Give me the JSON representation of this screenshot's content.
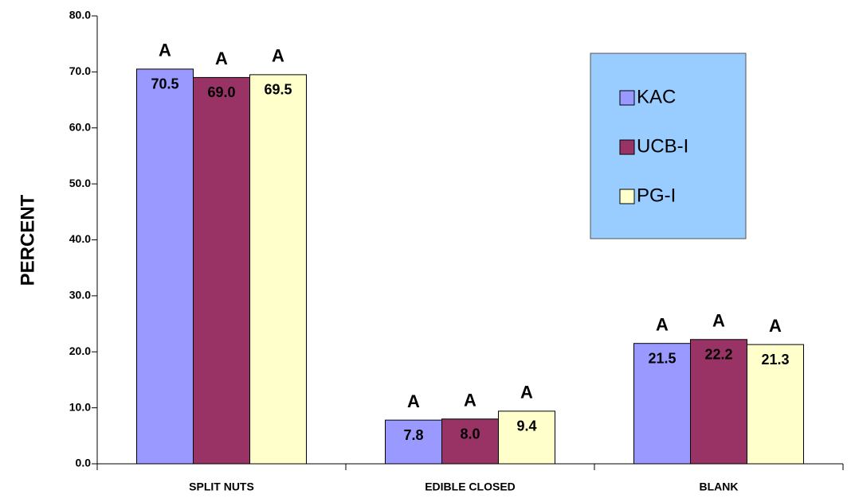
{
  "chart_data": {
    "type": "bar",
    "ylabel": "PERCENT",
    "categories": [
      "SPLIT NUTS",
      "EDIBLE CLOSED",
      "BLANK"
    ],
    "series": [
      {
        "name": "KAC",
        "color": "#9999ff",
        "values": [
          70.5,
          7.8,
          21.5
        ],
        "value_labels": [
          "70.5",
          "7.8",
          "21.5"
        ],
        "annotations": [
          "A",
          "A",
          "A"
        ]
      },
      {
        "name": "UCB-I",
        "color": "#993366",
        "values": [
          69.0,
          8.0,
          22.2
        ],
        "value_labels": [
          "69.0",
          "8.0",
          "22.2"
        ],
        "annotations": [
          "A",
          "A",
          "A"
        ]
      },
      {
        "name": "PG-I",
        "color": "#ffffcc",
        "values": [
          69.5,
          9.4,
          21.3
        ],
        "value_labels": [
          "69.5",
          "9.4",
          "21.3"
        ],
        "annotations": [
          "A",
          "A",
          "A"
        ]
      }
    ],
    "ylim": [
      0,
      80
    ],
    "yticks": [
      {
        "value": 0,
        "label": "0.0"
      },
      {
        "value": 10,
        "label": "10.0"
      },
      {
        "value": 20,
        "label": "20.0"
      },
      {
        "value": 30,
        "label": "30.0"
      },
      {
        "value": 40,
        "label": "40.0"
      },
      {
        "value": 50,
        "label": "50.0"
      },
      {
        "value": 60,
        "label": "60.0"
      },
      {
        "value": 70,
        "label": "70.0"
      },
      {
        "value": 80,
        "label": "80.0"
      }
    ],
    "legend": "upper right",
    "legend_color": "#99ccff"
  }
}
